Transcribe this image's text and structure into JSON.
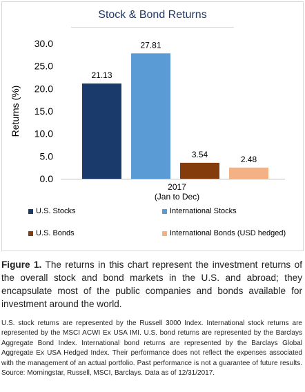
{
  "chart_data": {
    "type": "bar",
    "title": "Stock & Bond Returns",
    "ylabel": "Returns (%)",
    "xlabel": "",
    "categories": [
      "2017 (Jan to Dec)"
    ],
    "category_lines": [
      "2017",
      "(Jan to Dec)"
    ],
    "series": [
      {
        "name": "U.S. Stocks",
        "values": [
          21.13
        ],
        "label": "21.13",
        "color": "#1a3a6b"
      },
      {
        "name": "International Stocks",
        "values": [
          27.81
        ],
        "label": "27.81",
        "color": "#5b9bd5"
      },
      {
        "name": "U.S. Bonds",
        "values": [
          3.54
        ],
        "label": "3.54",
        "color": "#843c0c"
      },
      {
        "name": "International Bonds (USD hedged)",
        "values": [
          2.48
        ],
        "label": "2.48",
        "color": "#f4b183"
      }
    ],
    "ylim": [
      0,
      30
    ],
    "yticks": [
      "0.0",
      "5.0",
      "10.0",
      "15.0",
      "20.0",
      "25.0",
      "30.0"
    ],
    "grid": false,
    "legend_placement": "bottom"
  },
  "caption": {
    "figure_label": "Figure 1.",
    "text": "The returns in this chart represent the investment returns of the overall stock and bond markets in the U.S. and abroad; they encapsulate most of the public companies and bonds available for investment around the world."
  },
  "footnote": {
    "text": "U.S. stock returns are represented by the Russell 3000 Index. International stock returns are represented by the MSCI ACWI Ex USA IMI. U.S. bond returns are represented by the Barclays Aggregate Bond Index. International bond returns are represented by the Barclays Global Aggregate Ex USA Hedged Index. Their performance does not reflect the expenses associated with the management of an actual portfolio. Past performance is not a guarantee of future results. Source: Morningstar, Russell, MSCI, Barclays. Data as of 12/31/2017."
  }
}
